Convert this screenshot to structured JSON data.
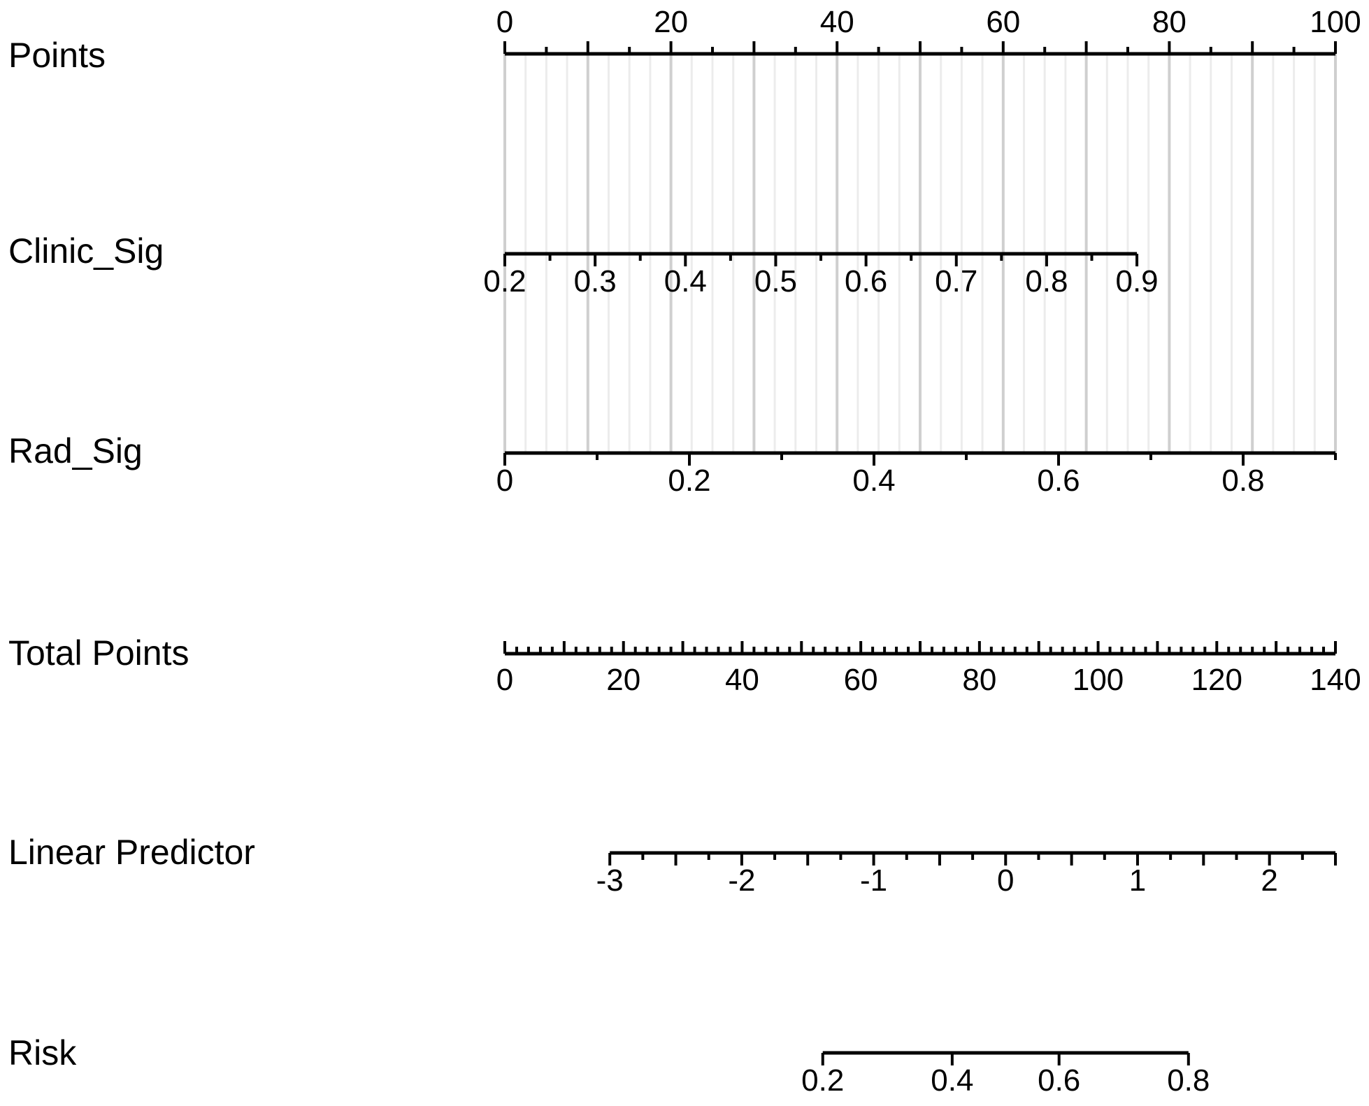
{
  "chart_data": {
    "type": "nomogram",
    "points_scale": {
      "label": "Points",
      "min": 0,
      "max": 100,
      "major_ticks": [
        0,
        10,
        20,
        30,
        40,
        50,
        60,
        70,
        80,
        90,
        100
      ],
      "minor_ticks": [
        5,
        15,
        25,
        35,
        45,
        55,
        65,
        75,
        85,
        95
      ],
      "tick_labels": [
        "0",
        "20",
        "40",
        "60",
        "80",
        "100"
      ],
      "tick_label_values": [
        0,
        20,
        40,
        60,
        80,
        100
      ]
    },
    "grid": true,
    "rows": [
      {
        "key": "clinic_sig",
        "label": "Clinic_Sig",
        "points_at_start": 0,
        "points_at_end": 76.1,
        "value_min": 0.2,
        "value_max": 0.9,
        "major_ticks": [
          0.2,
          0.3,
          0.4,
          0.5,
          0.6,
          0.7,
          0.8,
          0.9
        ],
        "minor_ticks": [
          0.25,
          0.35,
          0.45,
          0.55,
          0.65,
          0.75,
          0.85
        ],
        "tick_labels": [
          "0.2",
          "0.3",
          "0.4",
          "0.5",
          "0.6",
          "0.7",
          "0.8",
          "0.9"
        ],
        "tick_label_values": [
          0.2,
          0.3,
          0.4,
          0.5,
          0.6,
          0.7,
          0.8,
          0.9
        ]
      },
      {
        "key": "rad_sig",
        "label": "Rad_Sig",
        "points_at_start": 0,
        "points_at_end": 100,
        "value_min": 0,
        "value_max": 0.9,
        "major_ticks": [
          0,
          0.2,
          0.4,
          0.6,
          0.8
        ],
        "minor_ticks": [
          0.1,
          0.3,
          0.5,
          0.7,
          0.9
        ],
        "tick_labels": [
          "0",
          "0.2",
          "0.4",
          "0.6",
          "0.8"
        ],
        "tick_label_values": [
          0,
          0.2,
          0.4,
          0.6,
          0.8
        ]
      }
    ],
    "total_points": {
      "label": "Total Points",
      "min": 0,
      "max": 140,
      "major_ticks": [
        0,
        10,
        20,
        30,
        40,
        50,
        60,
        70,
        80,
        90,
        100,
        110,
        120,
        130,
        140
      ],
      "minor_step": 2,
      "tick_labels": [
        "0",
        "20",
        "40",
        "60",
        "80",
        "100",
        "120",
        "140"
      ],
      "tick_label_values": [
        0,
        20,
        40,
        60,
        80,
        100,
        120,
        140
      ]
    },
    "linear_predictor": {
      "label": "Linear Predictor",
      "total_points_at_min": 17.7,
      "total_points_at_max": 140,
      "value_min": -3,
      "value_max": 2.5,
      "major_ticks": [
        -3,
        -2.5,
        -2,
        -1.5,
        -1,
        -0.5,
        0,
        0.5,
        1,
        1.5,
        2,
        2.5
      ],
      "minor_ticks": [
        -2.75,
        -2.25,
        -1.75,
        -1.25,
        -0.75,
        -0.25,
        0.25,
        0.75,
        1.25,
        1.75,
        2.25
      ],
      "tick_labels": [
        "-3",
        "-2",
        "-1",
        "0",
        "1",
        "2"
      ],
      "tick_label_values": [
        -3,
        -2,
        -1,
        0,
        1,
        2
      ]
    },
    "risk": {
      "label": "Risk",
      "ticks": [
        {
          "label": "0.2",
          "linear_predictor": -1.386
        },
        {
          "label": "0.4",
          "linear_predictor": -0.405
        },
        {
          "label": "0.6",
          "linear_predictor": 0.405
        },
        {
          "label": "0.8",
          "linear_predictor": 1.386
        }
      ]
    }
  }
}
